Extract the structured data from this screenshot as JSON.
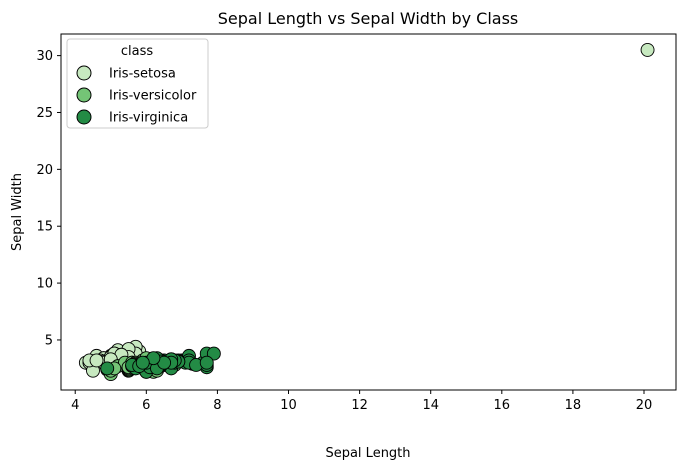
{
  "chart_data": {
    "type": "scatter",
    "title": "Sepal Length vs Sepal Width by Class",
    "xlabel": "Sepal Length",
    "ylabel": "Sepal Width",
    "xlim": [
      3.6,
      20.9
    ],
    "ylim": [
      0.6,
      31.9
    ],
    "xticks": [
      4,
      6,
      8,
      10,
      12,
      14,
      16,
      18,
      20
    ],
    "yticks": [
      5,
      10,
      15,
      20,
      25,
      30
    ],
    "grid": false,
    "legend": {
      "title": "class",
      "placement": "top-left"
    },
    "series": [
      {
        "name": "Iris-setosa",
        "color": "#c7e9c0",
        "points": [
          [
            5.1,
            3.5
          ],
          [
            4.9,
            3.0
          ],
          [
            4.7,
            3.2
          ],
          [
            4.6,
            3.1
          ],
          [
            5.0,
            3.6
          ],
          [
            5.4,
            3.9
          ],
          [
            4.6,
            3.4
          ],
          [
            5.0,
            3.4
          ],
          [
            4.4,
            2.9
          ],
          [
            4.9,
            3.1
          ],
          [
            5.4,
            3.7
          ],
          [
            4.8,
            3.4
          ],
          [
            4.8,
            3.0
          ],
          [
            4.3,
            3.0
          ],
          [
            5.8,
            4.0
          ],
          [
            5.7,
            4.4
          ],
          [
            5.4,
            3.9
          ],
          [
            5.1,
            3.5
          ],
          [
            5.7,
            3.8
          ],
          [
            5.1,
            3.8
          ],
          [
            5.4,
            3.4
          ],
          [
            5.1,
            3.7
          ],
          [
            4.6,
            3.6
          ],
          [
            5.1,
            3.3
          ],
          [
            4.8,
            3.4
          ],
          [
            5.0,
            3.0
          ],
          [
            5.0,
            3.4
          ],
          [
            5.2,
            3.5
          ],
          [
            5.2,
            3.4
          ],
          [
            4.7,
            3.2
          ],
          [
            4.8,
            3.1
          ],
          [
            5.4,
            3.4
          ],
          [
            5.2,
            4.1
          ],
          [
            5.5,
            4.2
          ],
          [
            4.9,
            3.1
          ],
          [
            5.0,
            3.2
          ],
          [
            5.5,
            3.5
          ],
          [
            4.4,
            3.0
          ],
          [
            5.1,
            3.4
          ],
          [
            5.0,
            3.5
          ],
          [
            4.5,
            2.3
          ],
          [
            4.4,
            3.2
          ],
          [
            5.0,
            3.5
          ],
          [
            5.1,
            3.8
          ],
          [
            4.8,
            3.0
          ],
          [
            5.1,
            3.8
          ],
          [
            4.6,
            3.2
          ],
          [
            5.3,
            3.7
          ],
          [
            5.0,
            3.3
          ],
          [
            20.1,
            30.5
          ]
        ]
      },
      {
        "name": "Iris-versicolor",
        "color": "#74c476",
        "points": [
          [
            7.0,
            3.2
          ],
          [
            6.4,
            3.2
          ],
          [
            6.9,
            3.1
          ],
          [
            5.5,
            2.3
          ],
          [
            6.5,
            2.8
          ],
          [
            5.7,
            2.8
          ],
          [
            6.3,
            3.3
          ],
          [
            4.9,
            2.4
          ],
          [
            6.6,
            2.9
          ],
          [
            5.2,
            2.7
          ],
          [
            5.0,
            2.0
          ],
          [
            5.9,
            3.0
          ],
          [
            6.0,
            2.2
          ],
          [
            6.1,
            2.9
          ],
          [
            5.6,
            2.9
          ],
          [
            6.7,
            3.1
          ],
          [
            5.6,
            3.0
          ],
          [
            5.8,
            2.7
          ],
          [
            6.2,
            2.2
          ],
          [
            5.6,
            2.5
          ],
          [
            5.9,
            3.2
          ],
          [
            6.1,
            2.8
          ],
          [
            6.3,
            2.5
          ],
          [
            6.1,
            2.8
          ],
          [
            6.4,
            2.9
          ],
          [
            6.6,
            3.0
          ],
          [
            6.8,
            2.8
          ],
          [
            6.7,
            3.0
          ],
          [
            6.0,
            2.9
          ],
          [
            5.7,
            2.6
          ],
          [
            5.5,
            2.4
          ],
          [
            5.5,
            2.4
          ],
          [
            5.8,
            2.7
          ],
          [
            6.0,
            2.7
          ],
          [
            5.4,
            3.0
          ],
          [
            6.0,
            3.4
          ],
          [
            6.7,
            3.1
          ],
          [
            6.3,
            2.3
          ],
          [
            5.6,
            3.0
          ],
          [
            5.5,
            2.5
          ],
          [
            5.5,
            2.6
          ],
          [
            6.1,
            3.0
          ],
          [
            5.8,
            2.6
          ],
          [
            5.0,
            2.3
          ],
          [
            5.6,
            2.7
          ],
          [
            5.7,
            3.0
          ],
          [
            5.7,
            2.9
          ],
          [
            6.2,
            2.9
          ],
          [
            5.1,
            2.5
          ],
          [
            5.7,
            2.8
          ]
        ]
      },
      {
        "name": "Iris-virginica",
        "color": "#238b45",
        "points": [
          [
            6.3,
            3.3
          ],
          [
            5.8,
            2.7
          ],
          [
            7.1,
            3.0
          ],
          [
            6.3,
            2.9
          ],
          [
            6.5,
            3.0
          ],
          [
            7.6,
            3.0
          ],
          [
            4.9,
            2.5
          ],
          [
            7.3,
            2.9
          ],
          [
            6.7,
            2.5
          ],
          [
            7.2,
            3.6
          ],
          [
            6.5,
            3.2
          ],
          [
            6.4,
            2.7
          ],
          [
            6.8,
            3.0
          ],
          [
            5.7,
            2.5
          ],
          [
            5.8,
            2.8
          ],
          [
            6.4,
            3.2
          ],
          [
            6.5,
            3.0
          ],
          [
            7.7,
            3.8
          ],
          [
            7.7,
            2.6
          ],
          [
            6.0,
            2.2
          ],
          [
            6.9,
            3.2
          ],
          [
            5.6,
            2.8
          ],
          [
            7.7,
            2.8
          ],
          [
            6.3,
            2.7
          ],
          [
            6.7,
            3.3
          ],
          [
            7.2,
            3.2
          ],
          [
            6.2,
            2.8
          ],
          [
            6.1,
            3.0
          ],
          [
            6.4,
            2.8
          ],
          [
            7.2,
            3.0
          ],
          [
            7.4,
            2.8
          ],
          [
            7.9,
            3.8
          ],
          [
            6.4,
            2.8
          ],
          [
            6.3,
            2.8
          ],
          [
            6.1,
            2.6
          ],
          [
            7.7,
            3.0
          ],
          [
            6.3,
            3.4
          ],
          [
            6.4,
            3.1
          ],
          [
            6.0,
            3.0
          ],
          [
            6.9,
            3.1
          ],
          [
            6.7,
            3.1
          ],
          [
            6.9,
            3.1
          ],
          [
            5.8,
            2.7
          ],
          [
            6.8,
            3.2
          ],
          [
            6.7,
            3.3
          ],
          [
            6.7,
            3.0
          ],
          [
            6.3,
            2.5
          ],
          [
            6.5,
            3.0
          ],
          [
            6.2,
            3.4
          ],
          [
            5.9,
            3.0
          ]
        ]
      }
    ]
  }
}
